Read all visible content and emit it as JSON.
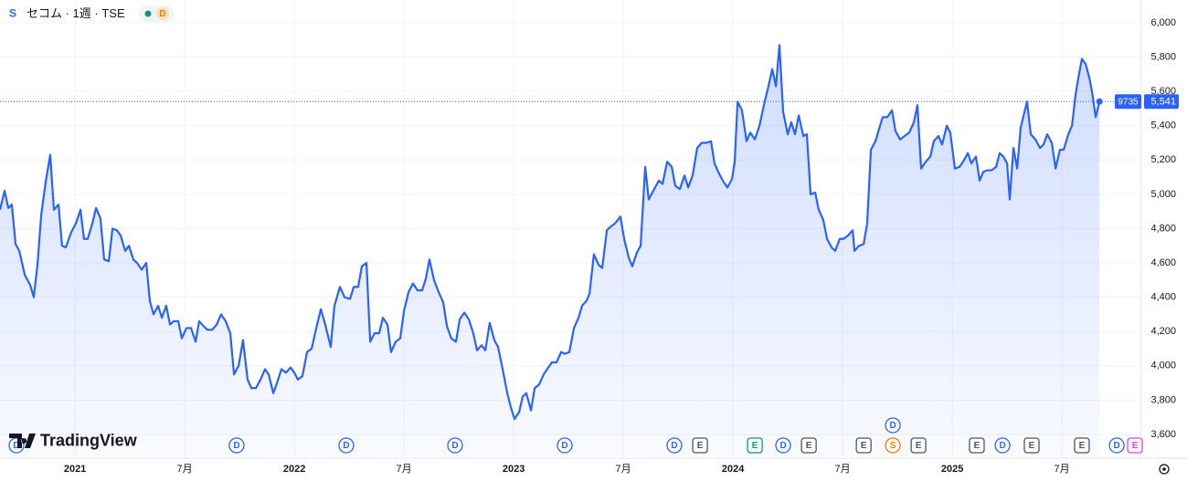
{
  "chart_data": {
    "type": "area",
    "title": "セコム · 1週 · TSE",
    "status_badge": "D",
    "symbol_code": "9735",
    "watermark": "TradingView",
    "color": "#2962ff",
    "grid": true,
    "last_price": {
      "value": 5541,
      "label": "5,541"
    },
    "xlim": [
      2020.658,
      2025.862
    ],
    "ylim": [
      3472,
      6133
    ],
    "xticks": [
      2021,
      {
        "value": 2021.5,
        "label": "7月"
      },
      2022,
      {
        "value": 2022.5,
        "label": "7月"
      },
      2023,
      {
        "value": 2023.5,
        "label": "7月"
      },
      2024,
      {
        "value": 2024.5,
        "label": "7月"
      },
      2025,
      {
        "value": 2025.5,
        "label": "7月"
      }
    ],
    "yticks": [
      {
        "value": 3600,
        "label": "3,600"
      },
      {
        "value": 3800,
        "label": "3,800"
      },
      {
        "value": 4000,
        "label": "4,000"
      },
      {
        "value": 4200,
        "label": "4,200"
      },
      {
        "value": 4400,
        "label": "4,400"
      },
      {
        "value": 4600,
        "label": "4,600"
      },
      {
        "value": 4800,
        "label": "4,800"
      },
      {
        "value": 5000,
        "label": "5,000"
      },
      {
        "value": 5200,
        "label": "5,200"
      },
      {
        "value": 5400,
        "label": "5,400"
      },
      {
        "value": 5600,
        "label": "5,600"
      },
      {
        "value": 5800,
        "label": "5,800"
      },
      {
        "value": 6000,
        "label": "6,000"
      }
    ],
    "x": [
      2020.658,
      2020.679,
      2020.696,
      2020.712,
      2020.729,
      2020.746,
      2020.771,
      2020.796,
      2020.812,
      2020.829,
      2020.846,
      2020.866,
      2020.887,
      2020.904,
      2020.925,
      2020.941,
      2020.958,
      2020.983,
      2021.004,
      2021.025,
      2021.041,
      2021.058,
      2021.079,
      2021.096,
      2021.116,
      2021.133,
      2021.154,
      2021.171,
      2021.191,
      2021.208,
      2021.229,
      2021.246,
      2021.266,
      2021.283,
      2021.304,
      2021.325,
      2021.341,
      2021.358,
      2021.379,
      2021.396,
      2021.416,
      2021.433,
      2021.45,
      2021.471,
      2021.487,
      2021.508,
      2021.529,
      2021.55,
      2021.566,
      2021.587,
      2021.604,
      2021.625,
      2021.646,
      2021.666,
      2021.687,
      2021.708,
      2021.725,
      2021.746,
      2021.766,
      2021.787,
      2021.804,
      2021.825,
      2021.846,
      2021.866,
      2021.883,
      2021.904,
      2021.921,
      2021.941,
      2021.962,
      2021.983,
      2022.0,
      2022.016,
      2022.037,
      2022.058,
      2022.079,
      2022.1,
      2022.121,
      2022.141,
      2022.166,
      2022.183,
      2022.208,
      2022.229,
      2022.254,
      2022.271,
      2022.291,
      2022.308,
      2022.329,
      2022.346,
      2022.366,
      2022.387,
      2022.404,
      2022.425,
      2022.441,
      2022.462,
      2022.483,
      2022.5,
      2022.521,
      2022.541,
      2022.562,
      2022.583,
      2022.6,
      2022.616,
      2022.637,
      2022.658,
      2022.679,
      2022.696,
      2022.716,
      2022.737,
      2022.754,
      2022.775,
      2022.796,
      2022.816,
      2022.833,
      2022.854,
      2022.871,
      2022.891,
      2022.912,
      2022.929,
      2022.95,
      2022.971,
      2022.987,
      2023.004,
      2023.025,
      2023.041,
      2023.058,
      2023.079,
      2023.096,
      2023.116,
      2023.137,
      2023.158,
      2023.175,
      2023.196,
      2023.216,
      2023.233,
      2023.254,
      2023.275,
      2023.296,
      2023.312,
      2023.333,
      2023.346,
      2023.366,
      2023.387,
      2023.404,
      2023.425,
      2023.441,
      2023.462,
      2023.487,
      2023.504,
      2023.525,
      2023.541,
      2023.562,
      2023.579,
      2023.6,
      2023.616,
      2023.641,
      2023.662,
      2023.679,
      2023.7,
      2023.721,
      2023.737,
      2023.758,
      2023.779,
      2023.796,
      2023.816,
      2023.837,
      2023.858,
      2023.879,
      2023.9,
      2023.916,
      2023.937,
      2023.958,
      2023.975,
      2023.996,
      2024.008,
      2024.021,
      2024.041,
      2024.062,
      2024.079,
      2024.1,
      2024.121,
      2024.141,
      2024.162,
      2024.179,
      2024.196,
      2024.212,
      2024.229,
      2024.25,
      2024.266,
      2024.283,
      2024.3,
      2024.321,
      2024.337,
      2024.354,
      2024.375,
      2024.391,
      2024.412,
      2024.429,
      2024.45,
      2024.466,
      2024.487,
      2024.504,
      2024.525,
      2024.546,
      2024.554,
      2024.575,
      2024.596,
      2024.612,
      2024.629,
      2024.65,
      2024.666,
      2024.683,
      2024.704,
      2024.725,
      2024.741,
      2024.762,
      2024.783,
      2024.804,
      2024.825,
      2024.841,
      2024.858,
      2024.879,
      2024.9,
      2024.916,
      2024.937,
      2024.954,
      2024.975,
      2024.991,
      2025.012,
      2025.033,
      2025.054,
      2025.071,
      2025.087,
      2025.108,
      2025.125,
      2025.141,
      2025.158,
      2025.179,
      2025.2,
      2025.216,
      2025.233,
      2025.25,
      2025.262,
      2025.279,
      2025.296,
      2025.312,
      2025.341,
      2025.358,
      2025.379,
      2025.4,
      2025.416,
      2025.433,
      2025.454,
      2025.471,
      2025.491,
      2025.508,
      2025.529,
      2025.546,
      2025.562,
      2025.575,
      2025.591,
      2025.608,
      2025.625,
      2025.637,
      2025.654,
      2025.671
    ],
    "values": [
      4910,
      5020,
      4920,
      4940,
      4710,
      4670,
      4530,
      4470,
      4400,
      4590,
      4880,
      5070,
      5230,
      4910,
      4940,
      4700,
      4690,
      4780,
      4830,
      4910,
      4740,
      4740,
      4830,
      4920,
      4860,
      4620,
      4610,
      4800,
      4790,
      4760,
      4670,
      4700,
      4620,
      4600,
      4560,
      4600,
      4380,
      4300,
      4350,
      4280,
      4350,
      4240,
      4260,
      4260,
      4160,
      4220,
      4220,
      4140,
      4260,
      4230,
      4210,
      4210,
      4240,
      4300,
      4260,
      4190,
      3950,
      4000,
      4150,
      3920,
      3870,
      3870,
      3920,
      3980,
      3950,
      3840,
      3900,
      3980,
      3960,
      3990,
      3960,
      3920,
      3940,
      4080,
      4100,
      4220,
      4330,
      4240,
      4110,
      4350,
      4460,
      4400,
      4390,
      4460,
      4460,
      4580,
      4600,
      4140,
      4190,
      4190,
      4280,
      4240,
      4080,
      4140,
      4160,
      4320,
      4430,
      4480,
      4440,
      4440,
      4510,
      4620,
      4500,
      4430,
      4370,
      4230,
      4160,
      4140,
      4270,
      4310,
      4270,
      4190,
      4090,
      4120,
      4090,
      4250,
      4150,
      4110,
      3980,
      3840,
      3760,
      3690,
      3730,
      3820,
      3840,
      3740,
      3870,
      3890,
      3950,
      3990,
      4020,
      4020,
      4080,
      4070,
      4080,
      4220,
      4280,
      4350,
      4380,
      4420,
      4650,
      4590,
      4570,
      4790,
      4810,
      4830,
      4870,
      4740,
      4630,
      4580,
      4660,
      4700,
      5160,
      4970,
      5030,
      5080,
      5060,
      5190,
      5160,
      5050,
      5030,
      5110,
      5040,
      5110,
      5270,
      5300,
      5300,
      5310,
      5180,
      5120,
      5070,
      5040,
      5090,
      5190,
      5540,
      5490,
      5310,
      5360,
      5320,
      5400,
      5520,
      5630,
      5730,
      5630,
      5870,
      5480,
      5350,
      5420,
      5350,
      5460,
      5340,
      5350,
      5000,
      5010,
      4910,
      4850,
      4740,
      4690,
      4670,
      4740,
      4740,
      4760,
      4790,
      4670,
      4700,
      4710,
      4830,
      5260,
      5310,
      5380,
      5450,
      5450,
      5490,
      5370,
      5320,
      5340,
      5360,
      5420,
      5520,
      5150,
      5190,
      5220,
      5310,
      5340,
      5290,
      5400,
      5360,
      5150,
      5160,
      5200,
      5240,
      5180,
      5220,
      5080,
      5130,
      5140,
      5140,
      5160,
      5240,
      5220,
      5180,
      4970,
      5270,
      5150,
      5390,
      5540,
      5350,
      5320,
      5270,
      5290,
      5350,
      5300,
      5150,
      5260,
      5260,
      5350,
      5400,
      5580,
      5680,
      5790,
      5760,
      5680,
      5600,
      5450,
      5541
    ],
    "events": [
      {
        "x": 2020.733,
        "label": "D",
        "color": "#2962ff"
      },
      {
        "x": 2021.737,
        "label": "D",
        "color": "#2962ff"
      },
      {
        "x": 2022.237,
        "label": "D",
        "color": "#2962ff"
      },
      {
        "x": 2022.733,
        "label": "D",
        "color": "#2962ff"
      },
      {
        "x": 2023.233,
        "label": "D",
        "color": "#2962ff"
      },
      {
        "x": 2023.733,
        "label": "D",
        "color": "#2962ff"
      },
      {
        "x": 2023.85,
        "label": "E",
        "color": "#555555"
      },
      {
        "x": 2024.1,
        "label": "E",
        "color": "#089981"
      },
      {
        "x": 2024.229,
        "label": "D",
        "color": "#2962ff"
      },
      {
        "x": 2024.346,
        "label": "E",
        "color": "#555555"
      },
      {
        "x": 2024.596,
        "label": "E",
        "color": "#555555"
      },
      {
        "x": 2024.729,
        "label": "S",
        "color": "#f57c00"
      },
      {
        "x": 2024.846,
        "label": "E",
        "color": "#555555"
      },
      {
        "x": 2025.112,
        "label": "E",
        "color": "#555555"
      },
      {
        "x": 2025.229,
        "label": "D",
        "color": "#2962ff"
      },
      {
        "x": 2025.362,
        "label": "E",
        "color": "#555555"
      },
      {
        "x": 2025.591,
        "label": "E",
        "color": "#555555"
      },
      {
        "x": 2025.75,
        "label": "D",
        "color": "#2962ff"
      },
      {
        "x": 2025.833,
        "label": "E",
        "color": "#e040fb"
      }
    ],
    "stacked_events": [
      {
        "x": 2024.729,
        "label": "D",
        "color": "#2962ff"
      }
    ]
  }
}
